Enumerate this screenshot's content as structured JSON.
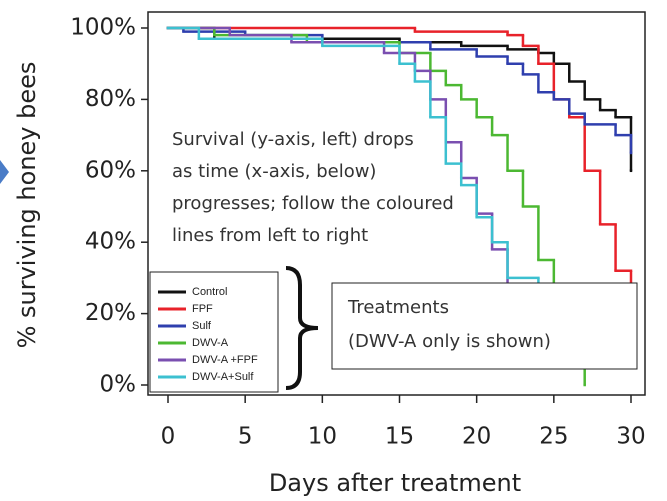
{
  "chart_data": {
    "type": "step",
    "xlabel": "Days after treatment",
    "ylabel": "% surviving honey bees",
    "xlim": [
      0,
      30
    ],
    "xticks": [
      0,
      5,
      10,
      15,
      20,
      25,
      30
    ],
    "ylim": [
      0,
      100
    ],
    "yticks": [
      {
        "value": 0,
        "label": "0%"
      },
      {
        "value": 20,
        "label": "20%"
      },
      {
        "value": 40,
        "label": "40%"
      },
      {
        "value": 60,
        "label": "60%"
      },
      {
        "value": 80,
        "label": "80%"
      },
      {
        "value": 100,
        "label": "100%"
      }
    ],
    "series": [
      {
        "name": "Control",
        "color": "#111111",
        "x": [
          0,
          3,
          15,
          19,
          22,
          24,
          25,
          26,
          27,
          28,
          29,
          30
        ],
        "values": [
          100,
          97,
          96,
          95,
          94,
          93,
          90,
          85,
          80,
          77,
          75,
          60
        ]
      },
      {
        "name": "FPF",
        "color": "#e8222a",
        "x": [
          0,
          16,
          22,
          23,
          24,
          25,
          26,
          27,
          28,
          29,
          30
        ],
        "values": [
          100,
          99,
          98,
          95,
          90,
          80,
          75,
          60,
          45,
          32,
          25
        ]
      },
      {
        "name": "Sulf",
        "color": "#2f3fae",
        "x": [
          0,
          1,
          5,
          10,
          17,
          20,
          22,
          23,
          24,
          25,
          26,
          27,
          29,
          30
        ],
        "values": [
          100,
          99,
          98,
          96,
          94,
          92,
          90,
          87,
          82,
          80,
          76,
          73,
          70,
          65
        ]
      },
      {
        "name": "DWV-A",
        "color": "#4cb832",
        "x": [
          0,
          3,
          9,
          15,
          17,
          18,
          19,
          20,
          21,
          22,
          23,
          24,
          25,
          26,
          27
        ],
        "values": [
          100,
          98,
          96,
          93,
          88,
          84,
          80,
          75,
          70,
          60,
          50,
          35,
          22,
          14,
          0
        ]
      },
      {
        "name": "DWV-A +FPF",
        "color": "#7a4fb0",
        "x": [
          0,
          4,
          8,
          14,
          16,
          17,
          18,
          19,
          20,
          21,
          22,
          23,
          24,
          26
        ],
        "values": [
          100,
          98,
          96,
          93,
          88,
          80,
          68,
          58,
          48,
          38,
          27,
          20,
          15,
          12
        ]
      },
      {
        "name": "DWV-A+Sulf",
        "color": "#3cc0d0",
        "x": [
          0,
          2,
          10,
          15,
          16,
          17,
          18,
          19,
          20,
          21,
          22,
          24,
          25,
          26
        ],
        "values": [
          100,
          97,
          95,
          90,
          85,
          75,
          62,
          56,
          47,
          40,
          30,
          18,
          13,
          13
        ]
      }
    ],
    "annotation_lines": [
      "Survival (y-axis, left) drops",
      "as time (x-axis, below)",
      "progresses; follow the coloured",
      "lines from left to right"
    ],
    "box_lines": [
      "Treatments",
      "(DWV-A only is shown)"
    ]
  }
}
